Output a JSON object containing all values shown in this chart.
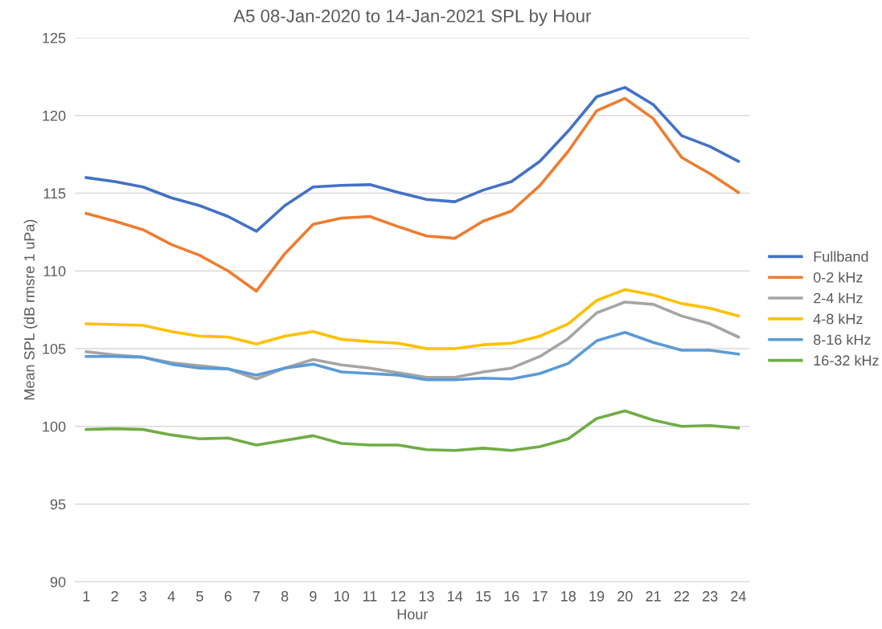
{
  "chart_data": {
    "type": "line",
    "title": "A5 08-Jan-2020 to 14-Jan-2021 SPL by Hour",
    "xlabel": "Hour",
    "ylabel": "Mean SPL (dB rmsre 1 uPa)",
    "categories": [
      "1",
      "2",
      "3",
      "4",
      "5",
      "6",
      "7",
      "8",
      "9",
      "10",
      "11",
      "12",
      "13",
      "14",
      "15",
      "16",
      "17",
      "18",
      "19",
      "20",
      "21",
      "22",
      "23",
      "24"
    ],
    "series": [
      {
        "name": "Fullband",
        "color": "#4472c4",
        "values": [
          116.0,
          115.75,
          115.4,
          114.7,
          114.2,
          113.5,
          112.55,
          114.2,
          115.4,
          115.5,
          115.55,
          115.05,
          114.6,
          114.45,
          115.2,
          115.75,
          117.05,
          119.0,
          121.2,
          121.8,
          120.7,
          118.7,
          118.0,
          117.05
        ]
      },
      {
        "name": "0-2 kHz",
        "color": "#ed7d31",
        "values": [
          113.7,
          113.2,
          112.65,
          111.7,
          111.0,
          110.0,
          108.7,
          111.1,
          113.0,
          113.4,
          113.5,
          112.85,
          112.25,
          112.1,
          113.2,
          113.85,
          115.5,
          117.7,
          120.3,
          121.1,
          119.8,
          117.3,
          116.25,
          115.05
        ]
      },
      {
        "name": "2-4 kHz",
        "color": "#a5a5a5",
        "values": [
          104.8,
          104.6,
          104.45,
          104.1,
          103.9,
          103.7,
          103.05,
          103.75,
          104.3,
          103.95,
          103.75,
          103.45,
          103.15,
          103.15,
          103.5,
          103.75,
          104.5,
          105.65,
          107.3,
          108.0,
          107.85,
          107.1,
          106.6,
          105.75
        ]
      },
      {
        "name": "4-8 kHz",
        "color": "#ffc000",
        "values": [
          106.6,
          106.55,
          106.5,
          106.1,
          105.8,
          105.75,
          105.3,
          105.8,
          106.1,
          105.6,
          105.45,
          105.35,
          105.0,
          105.0,
          105.25,
          105.35,
          105.8,
          106.6,
          108.1,
          108.8,
          108.45,
          107.9,
          107.6,
          107.1
        ]
      },
      {
        "name": "8-16 kHz",
        "color": "#5b9bd5",
        "values": [
          104.5,
          104.5,
          104.45,
          104.0,
          103.75,
          103.7,
          103.3,
          103.75,
          104.0,
          103.5,
          103.4,
          103.3,
          103.0,
          103.0,
          103.1,
          103.05,
          103.4,
          104.05,
          105.5,
          106.05,
          105.4,
          104.9,
          104.9,
          104.65
        ]
      },
      {
        "name": "16-32 kHz",
        "color": "#70ad47",
        "values": [
          99.8,
          99.85,
          99.8,
          99.45,
          99.2,
          99.25,
          98.8,
          99.1,
          99.4,
          98.9,
          98.8,
          98.8,
          98.5,
          98.45,
          98.6,
          98.45,
          98.7,
          99.2,
          100.5,
          101.0,
          100.4,
          100.0,
          100.05,
          99.9
        ]
      }
    ],
    "ylim": [
      90,
      125
    ],
    "yticks": [
      90,
      95,
      100,
      105,
      110,
      115,
      120,
      125
    ],
    "grid": "y",
    "legend": "right",
    "marker": "none",
    "line_style": "solid"
  }
}
